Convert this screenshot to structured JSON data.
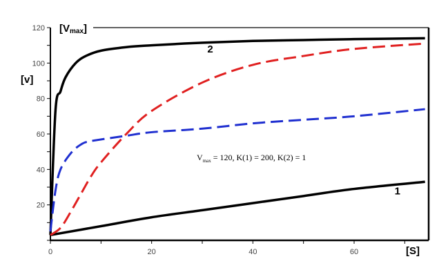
{
  "chart_data": {
    "type": "line",
    "title": "",
    "xlabel": "[S]",
    "ylabel": "[v]",
    "vmax_label": {
      "main": "[V",
      "sub": "max",
      "close": "]"
    },
    "xlim": [
      0,
      75
    ],
    "ylim": [
      0,
      120
    ],
    "x_ticks": [
      0,
      20,
      40,
      60
    ],
    "y_ticks": [
      20,
      40,
      60,
      80,
      100,
      120
    ],
    "grid": false,
    "annotation": {
      "main": "V",
      "sub": "max",
      "rest": " = 120, K(1) = 200, K(2) = 1"
    },
    "series": [
      {
        "name": "1",
        "color": "#000000",
        "style": "solid",
        "points": [
          [
            0,
            3
          ],
          [
            10,
            8
          ],
          [
            20,
            13
          ],
          [
            30,
            17
          ],
          [
            40,
            21
          ],
          [
            50,
            25
          ],
          [
            60,
            29
          ],
          [
            74,
            33
          ]
        ],
        "label_at": [
          68,
          26
        ]
      },
      {
        "name": "2",
        "color": "#000000",
        "style": "solid",
        "points": [
          [
            0,
            3
          ],
          [
            1,
            73
          ],
          [
            2,
            84
          ],
          [
            3,
            92
          ],
          [
            5,
            100
          ],
          [
            7,
            104
          ],
          [
            10,
            107
          ],
          [
            15,
            109
          ],
          [
            20,
            110
          ],
          [
            30,
            111.5
          ],
          [
            40,
            112.5
          ],
          [
            50,
            113
          ],
          [
            60,
            113.5
          ],
          [
            74,
            114
          ]
        ],
        "label_at": [
          31,
          106
        ]
      },
      {
        "color": "#1f2fd0",
        "style": "dashed",
        "points": [
          [
            0,
            5
          ],
          [
            1,
            28
          ],
          [
            2,
            40
          ],
          [
            4,
            49
          ],
          [
            6,
            54
          ],
          [
            8,
            56
          ],
          [
            15,
            59
          ],
          [
            20,
            61
          ],
          [
            30,
            63
          ],
          [
            40,
            66
          ],
          [
            50,
            68
          ],
          [
            60,
            70
          ],
          [
            74,
            74
          ]
        ]
      },
      {
        "color": "#e02020",
        "style": "dashed",
        "points": [
          [
            0,
            3
          ],
          [
            2,
            7
          ],
          [
            4,
            16
          ],
          [
            6,
            26
          ],
          [
            8,
            36
          ],
          [
            10,
            44
          ],
          [
            15,
            60
          ],
          [
            20,
            73
          ],
          [
            30,
            89
          ],
          [
            40,
            99
          ],
          [
            50,
            104
          ],
          [
            60,
            108
          ],
          [
            74,
            111
          ]
        ]
      }
    ]
  }
}
